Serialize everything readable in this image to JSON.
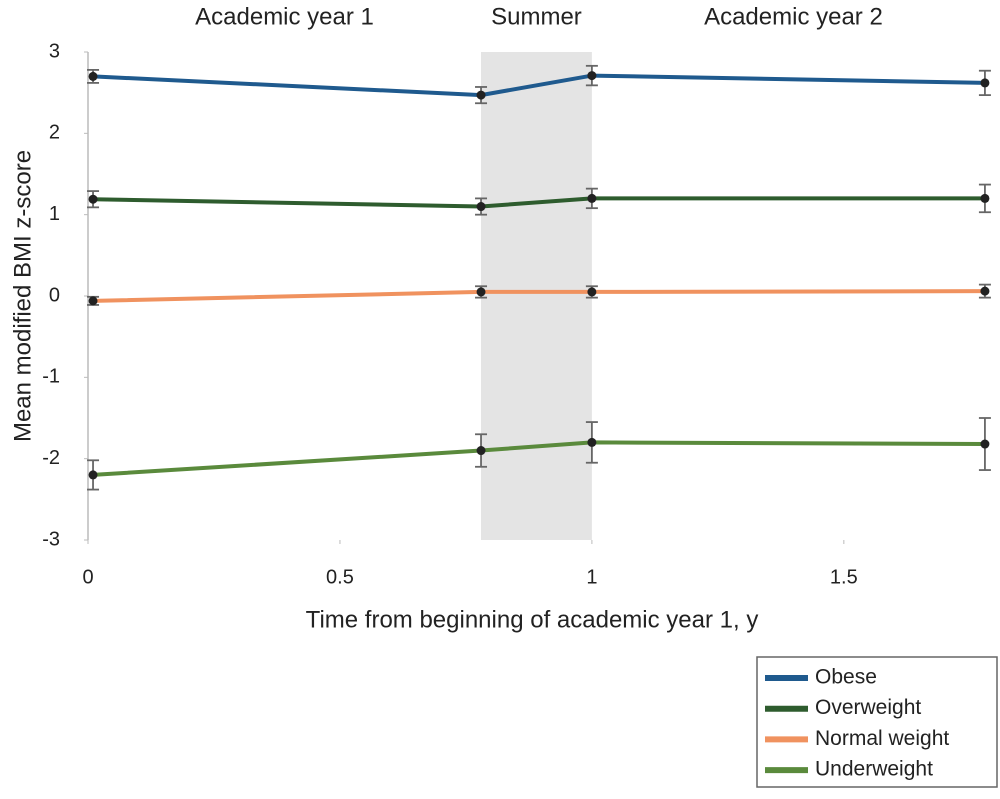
{
  "chart_data": {
    "type": "line",
    "annotations": [
      "Academic year 1",
      "Summer",
      "Academic year 2"
    ],
    "shaded_region": [
      0.78,
      1
    ],
    "xlabel": "Time from beginning of academic year 1, y",
    "ylabel": "Mean modified BMI z-score",
    "x": [
      0.01,
      0.78,
      1,
      1.78
    ],
    "xlim": [
      0,
      1.8
    ],
    "xticks": [
      0,
      0.5,
      1,
      1.5
    ],
    "ylim": [
      -3,
      3
    ],
    "yticks": [
      -3,
      -2,
      -1,
      0,
      1,
      2,
      3
    ],
    "grid": false,
    "legend": "bottom-right",
    "series": [
      {
        "name": "Obese",
        "color": "#1f5a8e",
        "values": [
          2.7,
          2.47,
          2.71,
          2.62
        ],
        "errors": [
          0.08,
          0.1,
          0.12,
          0.15
        ]
      },
      {
        "name": "Overweight",
        "color": "#2e5c2e",
        "values": [
          1.19,
          1.1,
          1.2,
          1.2
        ],
        "errors": [
          0.1,
          0.1,
          0.12,
          0.17
        ]
      },
      {
        "name": "Normal weight",
        "color": "#f0925f",
        "values": [
          -0.06,
          0.05,
          0.05,
          0.06
        ],
        "errors": [
          0.05,
          0.07,
          0.07,
          0.08
        ]
      },
      {
        "name": "Underweight",
        "color": "#5a8a3c",
        "values": [
          -2.2,
          -1.9,
          -1.8,
          -1.82
        ],
        "errors": [
          0.18,
          0.2,
          0.25,
          0.32
        ]
      }
    ]
  }
}
